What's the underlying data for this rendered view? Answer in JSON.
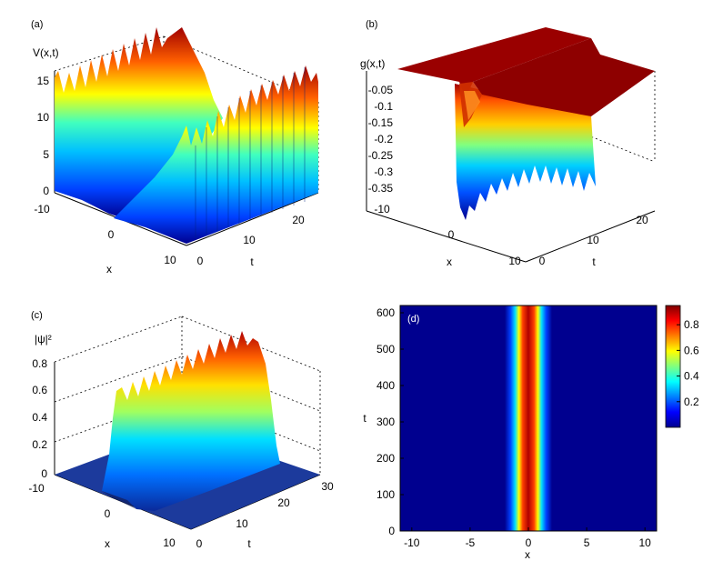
{
  "chart_data": [
    {
      "panel_label": "(a)",
      "type": "surface3d",
      "zlabel": "V(x,t)",
      "xlabel": "x",
      "ylabel": "t",
      "x_ticks": [
        "-10",
        "0",
        "10"
      ],
      "t_ticks": [
        "0",
        "10",
        "20"
      ],
      "z_ticks": [
        "0",
        "5",
        "10",
        "15"
      ],
      "xlim": [
        -10,
        10
      ],
      "tlim": [
        0,
        25
      ],
      "zlim": [
        0,
        17
      ],
      "description_values": {
        "min_at_x": 0,
        "max_approx": 16.5,
        "oscillation_period_t": 1.2
      }
    },
    {
      "panel_label": "(b)",
      "type": "surface3d",
      "zlabel": "g(x,t)",
      "xlabel": "x",
      "ylabel": "t",
      "x_ticks": [
        "-10",
        "0",
        "10"
      ],
      "t_ticks": [
        "0",
        "10",
        "20"
      ],
      "z_ticks": [
        "-0.05",
        "-0.1",
        "-0.15",
        "-0.2",
        "-0.25",
        "-0.3",
        "-0.35"
      ],
      "xlim": [
        -10,
        10
      ],
      "tlim": [
        0,
        25
      ],
      "zlim": [
        -0.4,
        0
      ],
      "description_values": {
        "plateau": -0.01,
        "min_approx": -0.39
      }
    },
    {
      "panel_label": "(c)",
      "type": "surface3d",
      "zlabel": "|ψ|²",
      "xlabel": "x",
      "ylabel": "t",
      "x_ticks": [
        "-10",
        "0",
        "10"
      ],
      "t_ticks": [
        "0",
        "10",
        "20",
        "30"
      ],
      "z_ticks": [
        "0",
        "0.2",
        "0.4",
        "0.6",
        "0.8"
      ],
      "xlim": [
        -10,
        10
      ],
      "tlim": [
        0,
        30
      ],
      "zlim": [
        0,
        0.9
      ],
      "description_values": {
        "peak_center_x": 0,
        "peak_max_approx": 0.83
      }
    },
    {
      "panel_label": "(d)",
      "type": "heatmap",
      "xlabel": "x",
      "ylabel": "t",
      "x_ticks": [
        "-10",
        "-5",
        "0",
        "5",
        "10"
      ],
      "y_ticks": [
        "0",
        "100",
        "200",
        "300",
        "400",
        "500",
        "600"
      ],
      "xlim": [
        -11,
        11
      ],
      "ylim": [
        0,
        620
      ],
      "colorbar_ticks": [
        "0.2",
        "0.4",
        "0.6",
        "0.8"
      ],
      "colorbar_range": [
        0,
        0.95
      ],
      "description_values": {
        "beam_center_x": 0,
        "beam_width_sigma": 0.75,
        "peak": 0.95
      }
    }
  ]
}
